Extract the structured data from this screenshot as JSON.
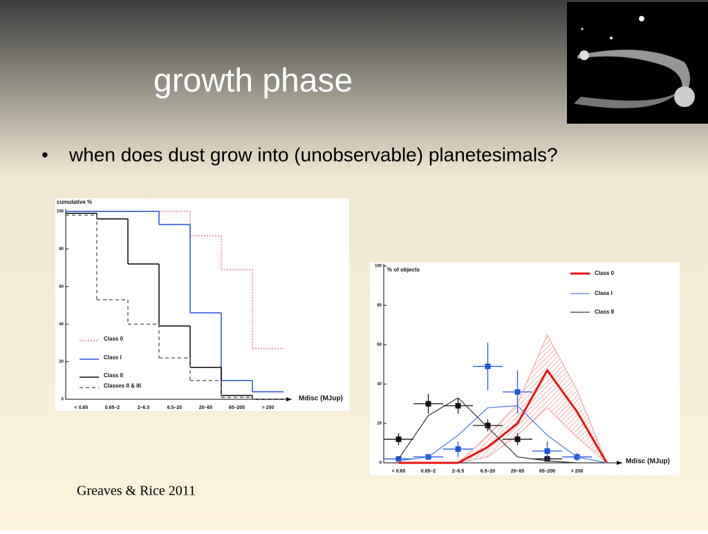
{
  "slide": {
    "title": "growth phase",
    "bullet": "when does dust grow into (unobservable) planetesimals?",
    "bullet_marker": "•",
    "citation": "Greaves & Rice 2011"
  },
  "chart_data": [
    {
      "type": "step",
      "ylabel": "cumulative %",
      "xlabel": "Mdisc (MJup)",
      "categories": [
        "< 0.65",
        "0.65–2",
        "2–6.5",
        "6.5–20",
        "20–65",
        "65–200",
        "> 200"
      ],
      "ylim": [
        0,
        100
      ],
      "yticks": [
        0,
        20,
        40,
        60,
        80,
        100
      ],
      "series": [
        {
          "name": "Class 0",
          "color": "#f08080",
          "dash": "2,2",
          "values": [
            100,
            100,
            100,
            100,
            87,
            69,
            27
          ]
        },
        {
          "name": "Class I",
          "color": "#2050e0",
          "dash": "",
          "values": [
            100,
            100,
            100,
            93,
            46,
            10,
            4
          ]
        },
        {
          "name": "Class II",
          "color": "#000000",
          "dash": "",
          "values": [
            99,
            96,
            72,
            39,
            17,
            2,
            0
          ]
        },
        {
          "name": "Classes II & III",
          "color": "#666666",
          "dash": "5,4",
          "values": [
            98,
            53,
            40,
            22,
            10,
            1,
            0
          ]
        }
      ]
    },
    {
      "type": "line",
      "ylabel": "% of objects",
      "xlabel": "Mdisc (MJup)",
      "categories": [
        "< 0.65",
        "0.65–2",
        "2–6.5",
        "6.5–20",
        "20–65",
        "65–200",
        "> 200",
        null
      ],
      "ylim": [
        0,
        100
      ],
      "yticks": [
        0,
        20,
        40,
        60,
        80,
        100
      ],
      "series": [
        {
          "name": "Class 0",
          "color": "#ee1111",
          "width": 3,
          "values": [
            0,
            0,
            0,
            8,
            20,
            47,
            26,
            0
          ],
          "band_high": [
            null,
            null,
            0,
            14,
            30,
            65,
            37,
            0
          ],
          "band_low": [
            null,
            null,
            0,
            3,
            14,
            28,
            13,
            0
          ]
        },
        {
          "name": "Class I",
          "color": "#4a78e0",
          "width": 1.2,
          "values": [
            1,
            3,
            14,
            28,
            29,
            14,
            3,
            0
          ]
        },
        {
          "name": "Class II",
          "color": "#333333",
          "width": 1.2,
          "values": [
            2,
            24,
            33,
            18,
            3,
            1,
            0,
            null
          ]
        }
      ],
      "points": [
        {
          "color": "#111111",
          "values": [
            12,
            30,
            29,
            19,
            12,
            2,
            null,
            null
          ],
          "errors": [
            3,
            5,
            4,
            3,
            3,
            1,
            null,
            null
          ]
        },
        {
          "color": "#2255dd",
          "values": [
            2,
            3,
            7,
            49,
            36,
            6,
            3,
            null
          ],
          "errors": [
            0,
            0,
            4,
            12,
            11,
            5,
            2,
            null
          ]
        }
      ]
    }
  ]
}
